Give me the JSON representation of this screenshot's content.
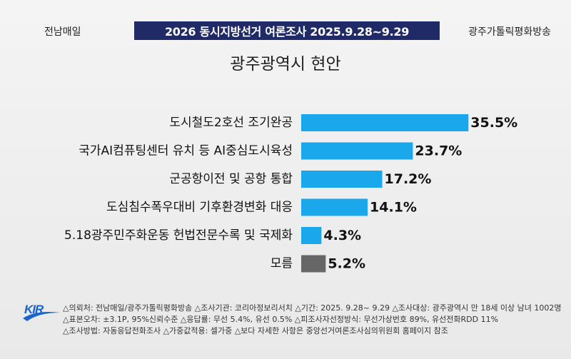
{
  "header": {
    "left_source": "전남매일",
    "banner": "2026 동시지방선거 여론조사 2025.9.28~9.29",
    "right_source": "광주가톨릭평화방송"
  },
  "chart_data": {
    "type": "bar",
    "orientation": "horizontal",
    "title": "광주광역시 현안",
    "categories": [
      "도시철도2호선 조기완공",
      "국가AI컴퓨팅센터 유치 등 AI중심도시육성",
      "군공항이전 및 공항 통합",
      "도심침수폭우대비 기후환경변화 대응",
      "5.18광주민주화운동 헌법전문수록 및 국제화",
      "모름"
    ],
    "values": [
      35.5,
      23.7,
      17.2,
      14.1,
      4.3,
      5.2
    ],
    "value_labels": [
      "35.5%",
      "23.7%",
      "17.2%",
      "14.1%",
      "4.3%",
      "5.2%"
    ],
    "colors": [
      "#1aa7ec",
      "#1aa7ec",
      "#1aa7ec",
      "#1aa7ec",
      "#1aa7ec",
      "#666666"
    ],
    "xlim": [
      0,
      40
    ],
    "grid": false,
    "legend": "none"
  },
  "footer": {
    "logo_text": "KIR",
    "line1": "△의뢰처: 전남매일/광주가톨릭평화방송 △조사기관: 코리아정보리서치 △기간: 2025. 9.28~ 9.29 △조사대상: 광주광역시 만 18세 이상 남녀 1002명",
    "line2": "△표본오차: ±3.1P, 95%신뢰수준 △응답률: 무선 5.4%, 유선 0.5% △피조사자선정방식: 무선가상번호 89%, 유선전화RDD 11%",
    "line3": "△조사방법: 자동응답전화조사 △가중값적용: 셀가중 △보다 자세한 사항은 중앙선거여론조사심의위원회 홈페이지 참조"
  }
}
